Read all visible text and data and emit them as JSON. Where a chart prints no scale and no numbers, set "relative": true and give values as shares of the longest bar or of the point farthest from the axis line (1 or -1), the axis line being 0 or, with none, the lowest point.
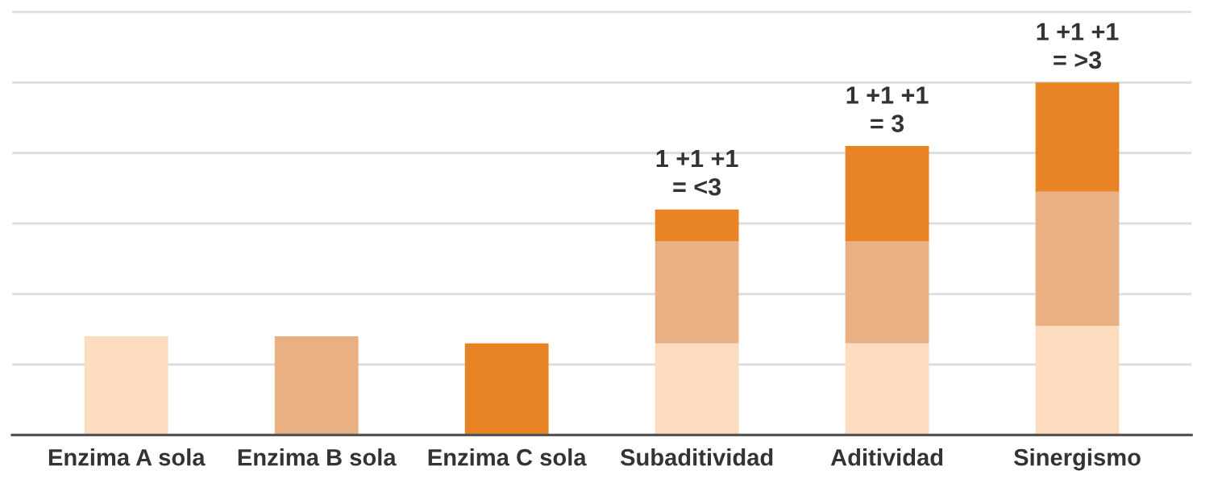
{
  "chart_data": {
    "type": "bar",
    "stacked": true,
    "relative": true,
    "grid": "y",
    "legend": false,
    "categories": [
      "Enzima A sola",
      "Enzima B sola",
      "Enzima C sola",
      "Subaditividad",
      "Aditividad",
      "Sinergismo"
    ],
    "series": [
      {
        "color": "#fddcc0",
        "values": [
          0.28,
          null,
          null,
          0.26,
          0.26,
          0.31
        ]
      },
      {
        "color": "#e8b083",
        "values": [
          null,
          0.28,
          null,
          0.29,
          0.29,
          0.38
        ]
      },
      {
        "color": "#e88426",
        "values": [
          null,
          null,
          0.26,
          0.09,
          0.27,
          0.31
        ]
      }
    ],
    "annotations": [
      {
        "text": "1 +1 +1\n= <3",
        "x": "Subaditividad",
        "y": 0.64
      },
      {
        "text": "1 +1 +1\n= 3",
        "x": "Aditividad",
        "y": 0.82
      },
      {
        "text": "1 +1 +1\n= >3",
        "x": "Sinergismo",
        "y": 1.0
      }
    ]
  }
}
